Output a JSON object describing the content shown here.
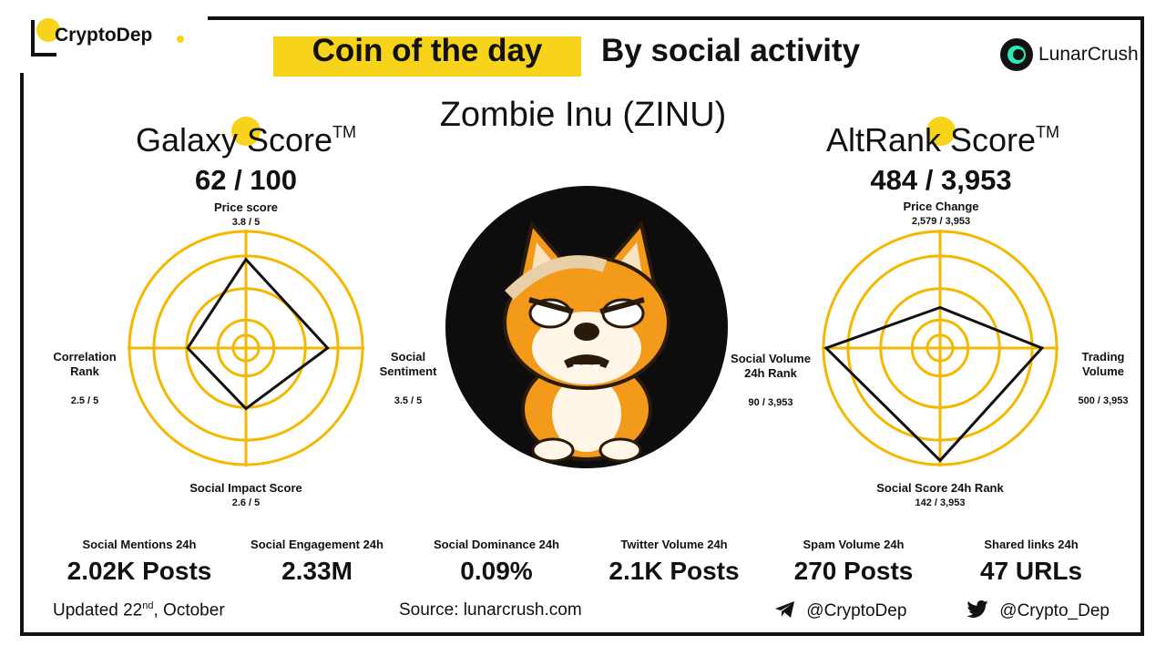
{
  "brand": {
    "name": "CryptoDep"
  },
  "header": {
    "title": "Coin of the day",
    "subtitle": "By social activity",
    "partner": "LunarCrush"
  },
  "coin": {
    "name": "Zombie Inu (ZINU)"
  },
  "galaxy": {
    "title": "Galaxy Score",
    "tm": "TM",
    "value": "62 / 100",
    "axes": {
      "top": {
        "label": "Price score",
        "value": "3.8 / 5",
        "score": 3.8,
        "max": 5
      },
      "right": {
        "label": "Social\nSentiment",
        "value": "3.5 / 5",
        "score": 3.5,
        "max": 5
      },
      "bottom": {
        "label": "Social Impact Score",
        "value": "2.6 / 5",
        "score": 2.6,
        "max": 5
      },
      "left": {
        "label": "Correlation\nRank",
        "value": "2.5 / 5",
        "score": 2.5,
        "max": 5
      }
    }
  },
  "altrank": {
    "title": "AltRank Score",
    "tm": "TM",
    "value": "484 / 3,953",
    "axes": {
      "top": {
        "label": "Price Change",
        "value": "2,579  / 3,953",
        "rank": 2579,
        "max": 3953
      },
      "right": {
        "label": "Trading\nVolume",
        "value": "500 / 3,953",
        "rank": 500,
        "max": 3953
      },
      "bottom": {
        "label": "Social Score 24h Rank",
        "value": "142 / 3,953",
        "rank": 142,
        "max": 3953
      },
      "left": {
        "label": "Social Volume\n24h Rank",
        "value": "90 / 3,953",
        "rank": 90,
        "max": 3953
      }
    }
  },
  "stats": [
    {
      "label": "Social Mentions 24h",
      "value": "2.02K Posts"
    },
    {
      "label": "Social Engagement 24h",
      "value": "2.33M"
    },
    {
      "label": "Social Dominance 24h",
      "value": "0.09%"
    },
    {
      "label": "Twitter Volume 24h",
      "value": "2.1K Posts"
    },
    {
      "label": "Spam Volume 24h",
      "value": "270 Posts"
    },
    {
      "label": "Shared links 24h",
      "value": "47 URLs"
    }
  ],
  "footer": {
    "updated_prefix": "Updated  22",
    "updated_sup": "nd",
    "updated_suffix": ", October",
    "source": "Source:  lunarcrush.com",
    "telegram": "@CryptoDep",
    "twitter": "@Crypto_Dep"
  },
  "colors": {
    "accent": "#f7d31b",
    "ring": "#f5b800",
    "dark": "#111111"
  },
  "icons": [
    "telegram-icon",
    "twitter-icon",
    "lunarcrush-logo-icon"
  ]
}
